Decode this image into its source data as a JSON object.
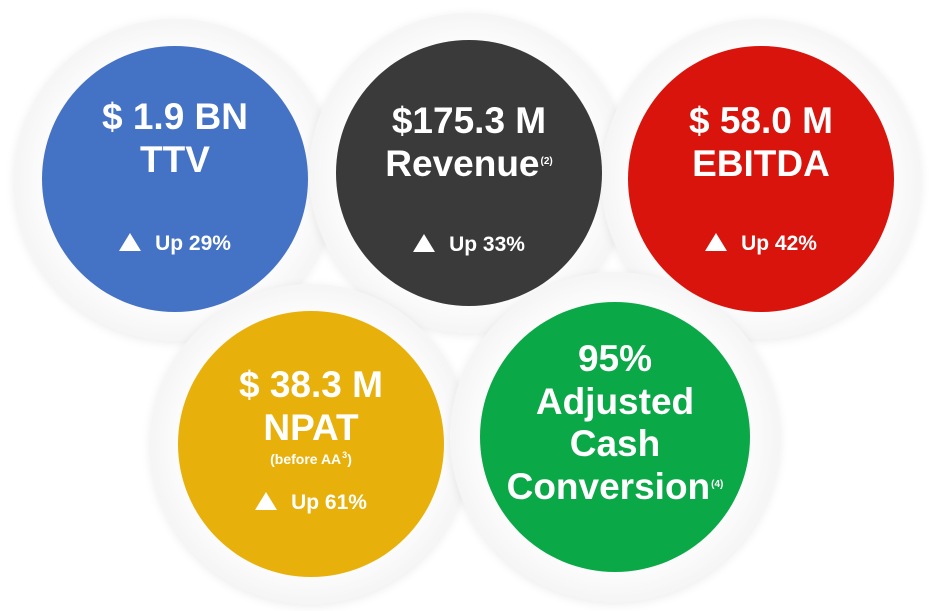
{
  "colors": {
    "ttv": "#4472c4",
    "revenue": "#3a3a3a",
    "ebitda": "#d8140d",
    "npat": "#e8b00a",
    "cash": "#0ba848"
  },
  "ttv": {
    "value": "$ 1.9 BN",
    "label": "TTV",
    "change": "Up 29%"
  },
  "revenue": {
    "value": "$175.3 M",
    "label": "Revenue",
    "footnote": "(2)",
    "change": "Up 33%"
  },
  "ebitda": {
    "value": "$ 58.0 M",
    "label": "EBITDA",
    "change": "Up 42%"
  },
  "npat": {
    "value": "$ 38.3 M",
    "label": "NPAT",
    "note": "(before AA",
    "note_sup": "3",
    "note_end": ")",
    "change": "Up 61%"
  },
  "cash": {
    "value": "95%",
    "line1": "Adjusted",
    "line2": "Cash",
    "line3": "Conversion",
    "footnote": "(4)"
  }
}
